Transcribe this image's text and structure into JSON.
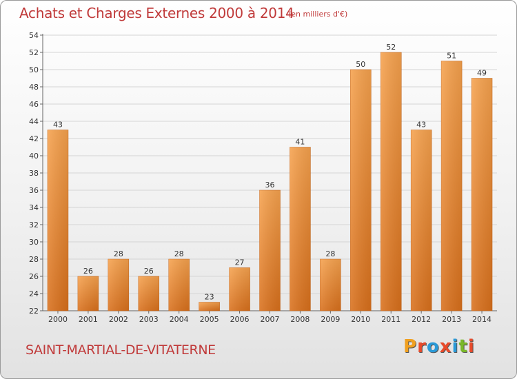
{
  "chart_data": {
    "type": "bar",
    "title": "Achats et Charges Externes 2000 à 2014",
    "subtitle": "(en milliers d'€)",
    "categories": [
      "2000",
      "2001",
      "2002",
      "2003",
      "2004",
      "2005",
      "2006",
      "2007",
      "2008",
      "2009",
      "2010",
      "2011",
      "2012",
      "2013",
      "2014"
    ],
    "values": [
      43,
      26,
      28,
      26,
      28,
      23,
      27,
      36,
      41,
      28,
      50,
      52,
      43,
      51,
      49
    ],
    "ylim": [
      22,
      54
    ],
    "yticks": [
      22,
      24,
      26,
      28,
      30,
      32,
      34,
      36,
      38,
      40,
      42,
      44,
      46,
      48,
      50,
      52,
      54
    ],
    "grid": true,
    "bar_color_light": "#f6a24e",
    "bar_color_dark": "#d9701c"
  },
  "footer": {
    "commune": "SAINT-MARTIAL-DE-VITATERNE",
    "logo_letters": [
      "P",
      "r",
      "o",
      "x",
      "i",
      "t",
      "i"
    ],
    "logo_colors": [
      "#f0a020",
      "#e84a2a",
      "#2a9ad8",
      "#e84a2a",
      "#2a9ad8",
      "#7ab828",
      "#e84a2a"
    ]
  }
}
